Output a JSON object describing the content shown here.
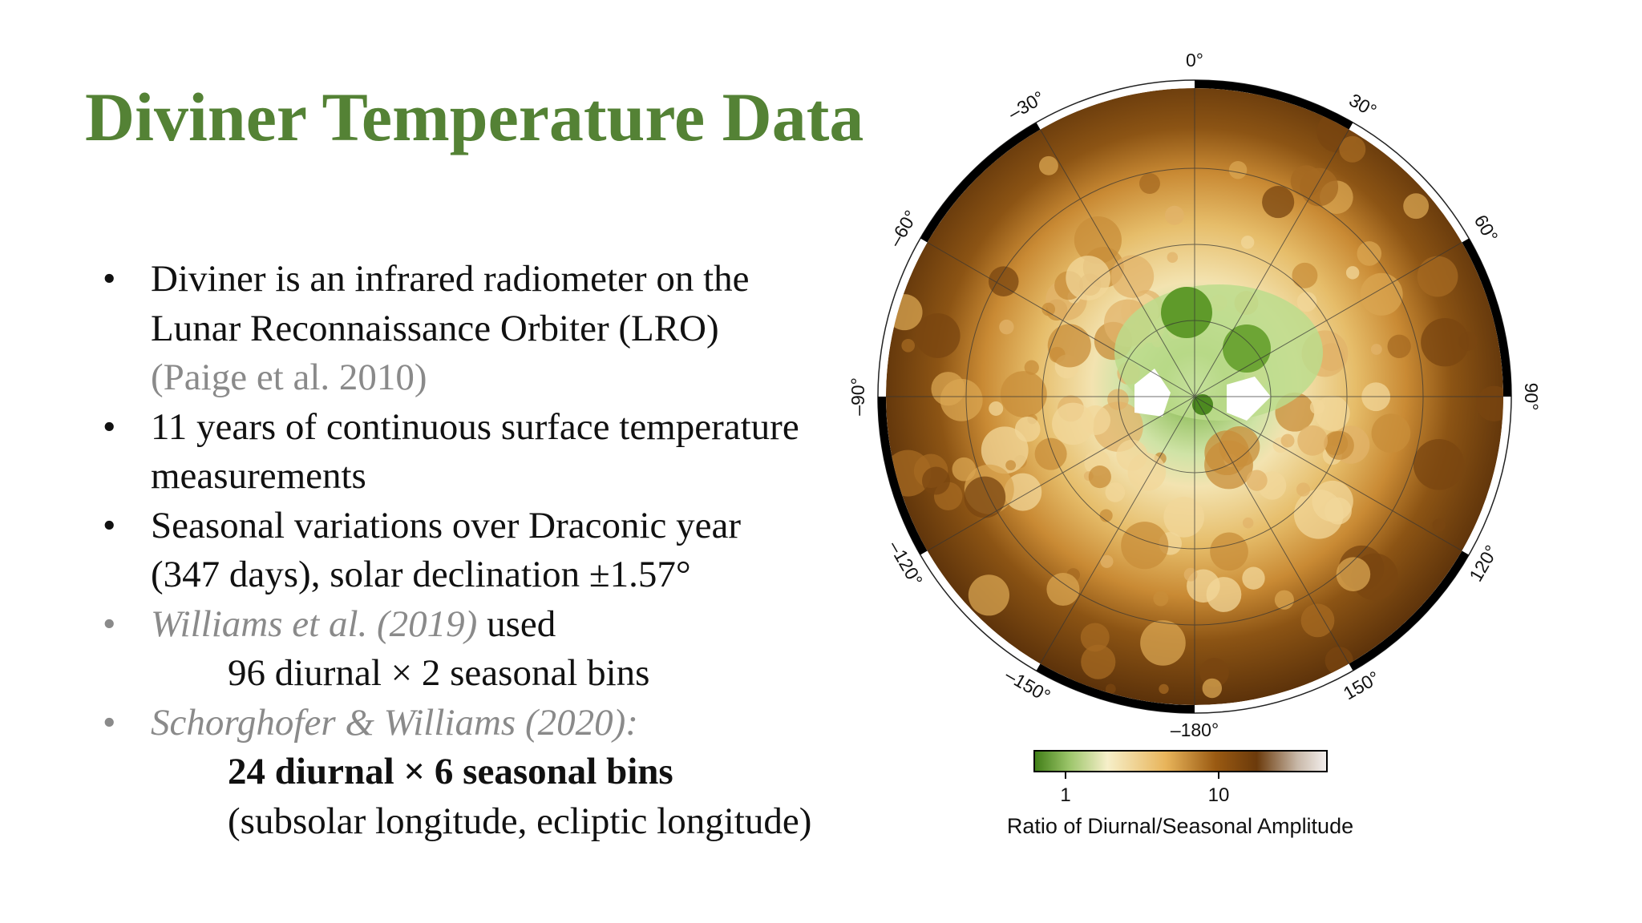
{
  "slide": {
    "title": "Diviner Temperature Data",
    "bullets": [
      {
        "line1": "Diviner is an infrared radiometer on the",
        "line2": "Lunar Reconnaissance Orbiter (LRO)",
        "ref": "(Paige et al. 2010)"
      },
      {
        "line1": "11 years of continuous surface temperature",
        "line2": "measurements"
      },
      {
        "line1": "Seasonal variations over Draconic year",
        "line2": "(347 days), solar declination ±1.57°"
      },
      {
        "ref_italic": "Williams et al. (2019)",
        "after": " used",
        "sub": "96 diurnal × 2 seasonal bins"
      },
      {
        "ref_italic": "Schorghofer & Williams (2020):",
        "sub_bold": "24 diurnal × 6 seasonal bins",
        "sub2": "(subsolar longitude, ecliptic longitude)"
      }
    ],
    "bullet_char": "•"
  },
  "map": {
    "longitude_labels": [
      "0°",
      "30°",
      "60°",
      "90°",
      "120°",
      "150°",
      "–180°",
      "–150°",
      "–120°",
      "–90°",
      "–60°",
      "–30°"
    ],
    "colorbar": {
      "ticks": [
        "1",
        "10"
      ],
      "label": "Ratio of Diurnal/Seasonal Amplitude",
      "colors": [
        "#3f7d15",
        "#9cc56a",
        "#f6efc9",
        "#e8b45a",
        "#9a5a12",
        "#6b3a0b",
        "#c8b8a8",
        "#f4f0ee"
      ]
    }
  }
}
